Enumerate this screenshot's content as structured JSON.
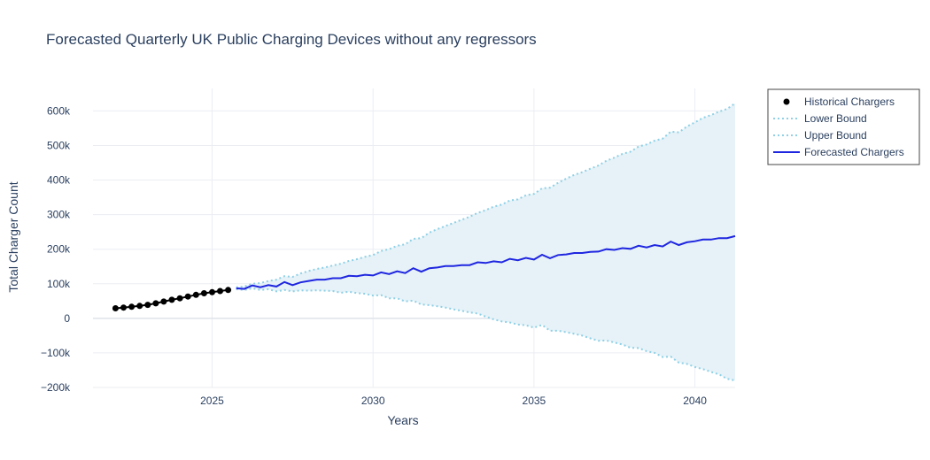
{
  "chart_data": {
    "type": "line",
    "title": "Forecasted Quarterly UK Public Charging Devices without any regressors",
    "xlabel": "Years",
    "ylabel": "Total Charger Count",
    "xlim": [
      2021.3,
      2041.25
    ],
    "ylim": [
      -200000,
      665000
    ],
    "x_ticks": [
      2025,
      2030,
      2035,
      2040
    ],
    "y_ticks": [
      -200000,
      -100000,
      0,
      100000,
      200000,
      300000,
      400000,
      500000,
      600000
    ],
    "y_tick_labels": [
      "−200k",
      "−100k",
      "0",
      "100k",
      "200k",
      "300k",
      "400k",
      "500k",
      "600k"
    ],
    "grid": true,
    "legend_position": "top-right outside",
    "colors": {
      "historical": "#000000",
      "bounds": "#8fd0e6",
      "band_fill": "#e6f2f7",
      "forecast": "#1f26e0",
      "grid": "#ebedf2",
      "zeroline": "#dfe3ea"
    },
    "legend": [
      {
        "label": "Historical Chargers",
        "kind": "marker"
      },
      {
        "label": "Lower Bound",
        "kind": "dotted"
      },
      {
        "label": "Upper Bound",
        "kind": "dotted"
      },
      {
        "label": "Forecasted Chargers",
        "kind": "line"
      }
    ],
    "series": [
      {
        "name": "Historical Chargers",
        "x": [
          2022.0,
          2022.25,
          2022.5,
          2022.75,
          2023.0,
          2023.25,
          2023.5,
          2023.75,
          2024.0,
          2024.25,
          2024.5,
          2024.75,
          2025.0,
          2025.25,
          2025.5
        ],
        "y": [
          29000,
          31000,
          33500,
          36000,
          39000,
          43500,
          48500,
          53500,
          58000,
          63000,
          68000,
          72500,
          75500,
          79000,
          82000
        ]
      },
      {
        "name": "Forecasted Chargers",
        "x": [
          2025.75,
          2026.0,
          2026.25,
          2026.5,
          2026.75,
          2027.0,
          2027.25,
          2027.5,
          2027.75,
          2028.0,
          2028.25,
          2028.5,
          2028.75,
          2029.0,
          2029.25,
          2029.5,
          2029.75,
          2030.0,
          2030.25,
          2030.5,
          2030.75,
          2031.0,
          2031.25,
          2031.5,
          2031.75,
          2032.0,
          2032.25,
          2032.5,
          2032.75,
          2033.0,
          2033.25,
          2033.5,
          2033.75,
          2034.0,
          2034.25,
          2034.5,
          2034.75,
          2035.0,
          2035.25,
          2035.5,
          2035.75,
          2036.0,
          2036.25,
          2036.5,
          2036.75,
          2037.0,
          2037.25,
          2037.5,
          2037.75,
          2038.0,
          2038.25,
          2038.5,
          2038.75,
          2039.0,
          2039.25,
          2039.5,
          2039.75,
          2040.0,
          2040.25,
          2040.5,
          2040.75,
          2041.0,
          2041.25
        ],
        "y": [
          87000,
          85000,
          95000,
          90000,
          96000,
          92000,
          105000,
          96000,
          104000,
          108000,
          112000,
          112000,
          116000,
          116000,
          123000,
          122000,
          126000,
          124000,
          133000,
          128000,
          136000,
          131000,
          145000,
          135000,
          145000,
          147000,
          151000,
          151000,
          154000,
          154000,
          162000,
          160000,
          165000,
          162000,
          172000,
          168000,
          175000,
          170000,
          184000,
          174000,
          183000,
          185000,
          189000,
          189000,
          192000,
          193000,
          200000,
          198000,
          203000,
          201000,
          210000,
          205000,
          212000,
          208000,
          222000,
          212000,
          220000,
          223000,
          228000,
          228000,
          232000,
          232000,
          238000
        ]
      },
      {
        "name": "Upper Bound",
        "x": [
          2025.75,
          2026.0,
          2026.25,
          2026.5,
          2026.75,
          2027.0,
          2027.25,
          2027.5,
          2027.75,
          2028.0,
          2028.25,
          2028.5,
          2028.75,
          2029.0,
          2029.25,
          2029.5,
          2029.75,
          2030.0,
          2030.25,
          2030.5,
          2030.75,
          2031.0,
          2031.25,
          2031.5,
          2031.75,
          2032.0,
          2032.25,
          2032.5,
          2032.75,
          2033.0,
          2033.25,
          2033.5,
          2033.75,
          2034.0,
          2034.25,
          2034.5,
          2034.75,
          2035.0,
          2035.25,
          2035.5,
          2035.75,
          2036.0,
          2036.25,
          2036.5,
          2036.75,
          2037.0,
          2037.25,
          2037.5,
          2037.75,
          2038.0,
          2038.25,
          2038.5,
          2038.75,
          2039.0,
          2039.25,
          2039.5,
          2039.75,
          2040.0,
          2040.25,
          2040.5,
          2040.75,
          2041.0,
          2041.25
        ],
        "y": [
          90000,
          92000,
          100000,
          102000,
          108000,
          112000,
          122000,
          120000,
          130000,
          137000,
          143000,
          147000,
          153000,
          158000,
          166000,
          171000,
          178000,
          183000,
          195000,
          200000,
          210000,
          214000,
          230000,
          232000,
          248000,
          258000,
          267000,
          276000,
          285000,
          294000,
          305000,
          313000,
          323000,
          329000,
          341000,
          344000,
          356000,
          360000,
          376000,
          378000,
          392000,
          404000,
          415000,
          423000,
          433000,
          442000,
          456000,
          465000,
          476000,
          482000,
          497000,
          503000,
          514000,
          520000,
          540000,
          538000,
          555000,
          567000,
          580000,
          588000,
          598000,
          606000,
          622000
        ]
      },
      {
        "name": "Lower Bound",
        "x": [
          2025.75,
          2026.0,
          2026.25,
          2026.5,
          2026.75,
          2027.0,
          2027.25,
          2027.5,
          2027.75,
          2028.0,
          2028.25,
          2028.5,
          2028.75,
          2029.0,
          2029.25,
          2029.5,
          2029.75,
          2030.0,
          2030.25,
          2030.5,
          2030.75,
          2031.0,
          2031.25,
          2031.5,
          2031.75,
          2032.0,
          2032.25,
          2032.5,
          2032.75,
          2033.0,
          2033.25,
          2033.5,
          2033.75,
          2034.0,
          2034.25,
          2034.5,
          2034.75,
          2035.0,
          2035.25,
          2035.5,
          2035.75,
          2036.0,
          2036.25,
          2036.5,
          2036.75,
          2037.0,
          2037.25,
          2037.5,
          2037.75,
          2038.0,
          2038.25,
          2038.5,
          2038.75,
          2039.0,
          2039.25,
          2039.5,
          2039.75,
          2040.0,
          2040.25,
          2040.5,
          2040.75,
          2041.0,
          2041.25
        ],
        "y": [
          84000,
          82000,
          87000,
          82000,
          84000,
          78000,
          82000,
          78000,
          81000,
          80000,
          81000,
          80000,
          79000,
          74000,
          77000,
          73000,
          71000,
          66000,
          67000,
          58000,
          58000,
          49000,
          51000,
          40000,
          38000,
          35000,
          31000,
          26000,
          22000,
          17000,
          14000,
          5000,
          -3000,
          -9000,
          -12000,
          -18000,
          -20000,
          -27000,
          -19000,
          -36000,
          -36000,
          -40000,
          -45000,
          -50000,
          -58000,
          -65000,
          -64000,
          -70000,
          -76000,
          -85000,
          -86000,
          -95000,
          -100000,
          -112000,
          -111000,
          -128000,
          -132000,
          -141000,
          -147000,
          -155000,
          -162000,
          -175000,
          -180000
        ]
      }
    ]
  }
}
